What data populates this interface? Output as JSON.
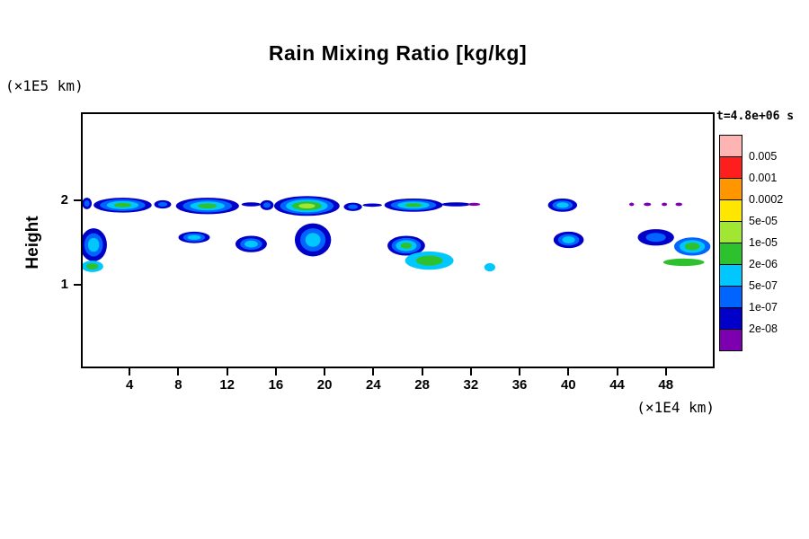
{
  "title": "Rain Mixing Ratio [kg/kg]",
  "axes": {
    "y_unit_label": "(×1E5 km)",
    "x_unit_label": "(×1E4 km)",
    "y_axis_label": "Height"
  },
  "colorbar": {
    "title": "t=4.8e+06 s",
    "labels": [
      "0.005",
      "0.001",
      "0.0002",
      "5e-05",
      "1e-05",
      "2e-06",
      "5e-07",
      "1e-07",
      "2e-08"
    ],
    "colors_top_to_bottom": [
      "#ffb4b4",
      "#ff1e1e",
      "#ff9600",
      "#ffe600",
      "#a0e632",
      "#2dc22d",
      "#00c8ff",
      "#0064ff",
      "#0000c8",
      "#7d00b0"
    ]
  },
  "chart_data": {
    "type": "heatmap",
    "title": "Rain Mixing Ratio [kg/kg]",
    "xlabel": "(×1E4 km)",
    "ylabel": "Height (×1E5 km)",
    "time_label": "t=4.8e+06 s",
    "x_range": [
      0,
      52
    ],
    "y_range": [
      0,
      3.05
    ],
    "x_ticks": [
      4,
      8,
      12,
      16,
      20,
      24,
      28,
      32,
      36,
      40,
      44,
      48
    ],
    "y_ticks": [
      1,
      2
    ],
    "grid": false,
    "legend_position": "right",
    "level_boundaries": [
      2e-08,
      1e-07,
      5e-07,
      2e-06,
      1e-05,
      5e-05,
      0.0002,
      0.001,
      0.005
    ],
    "palette_low_to_high": [
      "#7d00b0",
      "#0000c8",
      "#0064ff",
      "#00c8ff",
      "#2dc22d",
      "#a0e632",
      "#ffe600",
      "#ff9600",
      "#ff1e1e",
      "#ffb4b4"
    ],
    "blobs": [
      {
        "x": 0.35,
        "y": 1.97,
        "rx": 0.4,
        "ry": 0.07,
        "levels": [
          1,
          2
        ]
      },
      {
        "x": 3.3,
        "y": 1.95,
        "rx": 2.4,
        "ry": 0.09,
        "levels": [
          1,
          2,
          3,
          4
        ]
      },
      {
        "x": 6.6,
        "y": 1.96,
        "rx": 0.7,
        "ry": 0.05,
        "levels": [
          1,
          2
        ]
      },
      {
        "x": 10.3,
        "y": 1.94,
        "rx": 2.6,
        "ry": 0.1,
        "levels": [
          1,
          2,
          3,
          4
        ]
      },
      {
        "x": 13.9,
        "y": 1.96,
        "rx": 0.8,
        "ry": 0.025,
        "levels": [
          1
        ]
      },
      {
        "x": 15.2,
        "y": 1.95,
        "rx": 0.55,
        "ry": 0.06,
        "levels": [
          1,
          2
        ]
      },
      {
        "x": 18.5,
        "y": 1.94,
        "rx": 2.7,
        "ry": 0.12,
        "levels": [
          1,
          2,
          3,
          4,
          5
        ]
      },
      {
        "x": 22.3,
        "y": 1.93,
        "rx": 0.75,
        "ry": 0.05,
        "levels": [
          1,
          2
        ]
      },
      {
        "x": 23.9,
        "y": 1.95,
        "rx": 0.8,
        "ry": 0.02,
        "levels": [
          1
        ]
      },
      {
        "x": 27.3,
        "y": 1.95,
        "rx": 2.4,
        "ry": 0.08,
        "levels": [
          1,
          2,
          3,
          4
        ]
      },
      {
        "x": 30.8,
        "y": 1.96,
        "rx": 1.2,
        "ry": 0.025,
        "levels": [
          1
        ]
      },
      {
        "x": 32.3,
        "y": 1.96,
        "rx": 0.5,
        "ry": 0.018,
        "levels": [
          0
        ]
      },
      {
        "x": 39.6,
        "y": 1.95,
        "rx": 1.2,
        "ry": 0.08,
        "levels": [
          1,
          2,
          3
        ]
      },
      {
        "x": 45.3,
        "y": 1.96,
        "rx": 0.2,
        "ry": 0.02,
        "levels": [
          0
        ]
      },
      {
        "x": 46.6,
        "y": 1.96,
        "rx": 0.3,
        "ry": 0.02,
        "levels": [
          0
        ]
      },
      {
        "x": 48.0,
        "y": 1.96,
        "rx": 0.22,
        "ry": 0.02,
        "levels": [
          0
        ]
      },
      {
        "x": 49.2,
        "y": 1.96,
        "rx": 0.28,
        "ry": 0.02,
        "levels": [
          0
        ]
      },
      {
        "x": 0.9,
        "y": 1.47,
        "rx": 1.1,
        "ry": 0.2,
        "levels": [
          1,
          2,
          3
        ]
      },
      {
        "x": 0.8,
        "y": 1.21,
        "rx": 0.9,
        "ry": 0.07,
        "levels": [
          3,
          4
        ]
      },
      {
        "x": 9.2,
        "y": 1.56,
        "rx": 1.3,
        "ry": 0.07,
        "levels": [
          1,
          2,
          3
        ]
      },
      {
        "x": 13.9,
        "y": 1.48,
        "rx": 1.3,
        "ry": 0.1,
        "levels": [
          1,
          2,
          3
        ]
      },
      {
        "x": 19.0,
        "y": 1.53,
        "rx": 1.5,
        "ry": 0.2,
        "levels": [
          1,
          2,
          3
        ]
      },
      {
        "x": 26.7,
        "y": 1.46,
        "rx": 1.55,
        "ry": 0.12,
        "levels": [
          1,
          2,
          3,
          4
        ]
      },
      {
        "x": 28.6,
        "y": 1.28,
        "rx": 2.0,
        "ry": 0.11,
        "levels": [
          3,
          4
        ]
      },
      {
        "x": 33.6,
        "y": 1.2,
        "rx": 0.45,
        "ry": 0.05,
        "levels": [
          3
        ]
      },
      {
        "x": 40.1,
        "y": 1.53,
        "rx": 1.25,
        "ry": 0.1,
        "levels": [
          1,
          2,
          3
        ]
      },
      {
        "x": 47.3,
        "y": 1.56,
        "rx": 1.5,
        "ry": 0.1,
        "levels": [
          1,
          2
        ]
      },
      {
        "x": 50.3,
        "y": 1.45,
        "rx": 1.5,
        "ry": 0.11,
        "levels": [
          2,
          3,
          4
        ]
      },
      {
        "x": 49.6,
        "y": 1.26,
        "rx": 1.7,
        "ry": 0.045,
        "levels": [
          4
        ]
      }
    ]
  }
}
